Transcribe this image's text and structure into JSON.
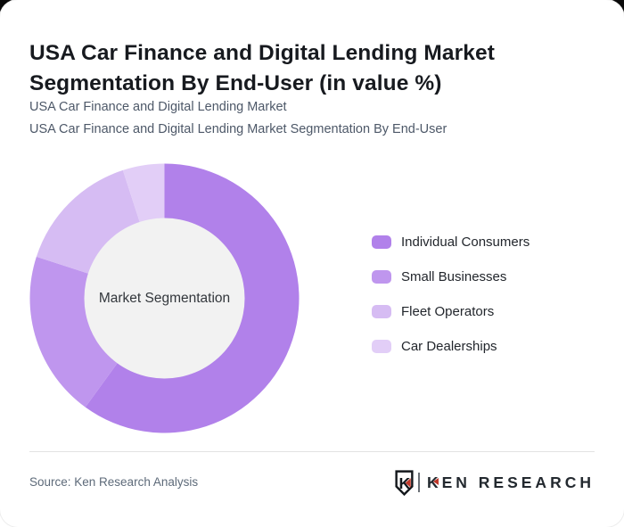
{
  "page": {
    "title": "USA Car Finance and Digital Lending Market Segmentation By End-User (in value %)",
    "subtitle_line1": "USA Car Finance and Digital Lending Market",
    "subtitle_line2": "USA Car Finance and Digital Lending Market Segmentation By End-User"
  },
  "chart_data": {
    "type": "pie",
    "variant": "donut",
    "title": "USA Car Finance and Digital Lending Market Segmentation By End-User (in value %)",
    "center_label": "Market Segmentation",
    "categories": [
      "Individual Consumers",
      "Small Businesses",
      "Fleet Operators",
      "Car Dealerships"
    ],
    "values": [
      60,
      20,
      15,
      5
    ],
    "unit": "percent of value (estimated from arc angles; no numeric labels shown)",
    "colors": [
      "#b181ea",
      "#bf96ee",
      "#d6bcf3",
      "#e2cef7"
    ],
    "inner_circle_color": "#f2f2f2",
    "start_angle_deg": 0,
    "direction": "clockwise",
    "legend_position": "right",
    "data_labels_shown": false
  },
  "footer": {
    "source": "Source: Ken Research Analysis",
    "logo": {
      "shield_letter": "K",
      "brand_first_letter": "K",
      "brand_rest": "EN RESEARCH",
      "accent_color": "#c0392b",
      "text_color": "#23292f"
    }
  }
}
